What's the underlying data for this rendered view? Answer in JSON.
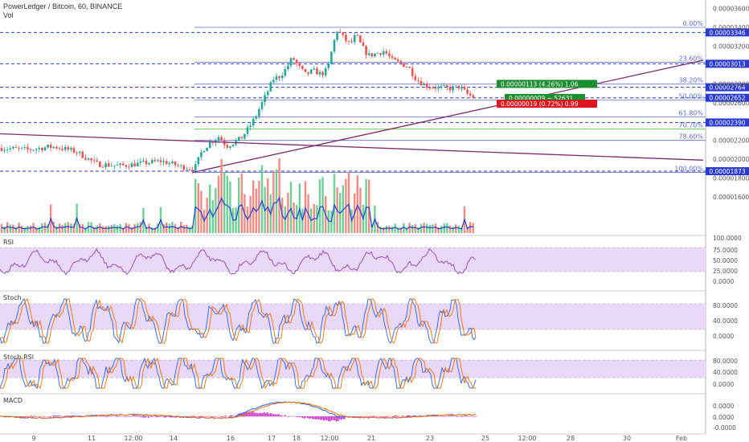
{
  "header": {
    "title": "PowerLedger / Bitcoin, 60, BINANCE",
    "vol": "Vol"
  },
  "colors": {
    "up": "#26a69a",
    "down": "#ef5350",
    "fib": "#5d6bd6",
    "hline": "#2a3ad6",
    "trend": "#7b2b6b",
    "rsi": "#8e44ad",
    "band": "#e9d8f7",
    "stochK": "#2962ff",
    "stochD": "#ff6d00",
    "macdLine": "#2962ff",
    "signal": "#ff6d00",
    "hist": "#cc33cc",
    "green": "#1b8e2f",
    "red": "#e0141e"
  },
  "chart_data": {
    "type": "candlestick",
    "title": "PowerLedger / Bitcoin, 60, BINANCE",
    "ylim": [
      1.66e-05,
      3.69e-05
    ],
    "price_ticks": [
      "0.00003600",
      "0.00003400",
      "0.00003200",
      "0.00002800",
      "0.00002600",
      "0.00002200",
      "0.00002000",
      "0.00001800",
      "0.00001600"
    ],
    "x_ticks": [
      "9",
      "11",
      "12:00",
      "14",
      "16",
      "17",
      "18",
      "12:00",
      "21",
      "23",
      "25",
      "12:00",
      "28",
      "30",
      "Feb"
    ],
    "close_path": [
      [
        0,
        2.12e-05
      ],
      [
        35,
        2.1e-05
      ],
      [
        60,
        2.13e-05
      ],
      [
        70,
        2.13e-05
      ],
      [
        95,
        2.08e-05
      ],
      [
        120,
        1.95e-05
      ],
      [
        150,
        1.93e-05
      ],
      [
        180,
        1.96e-05
      ],
      [
        200,
        1.98e-05
      ],
      [
        210,
        1.96e-05
      ],
      [
        225,
        1.92e-05
      ],
      [
        232,
        1.91e-05
      ],
      [
        242,
        1.9e-05
      ],
      [
        252,
        2.1e-05
      ],
      [
        262,
        2.18e-05
      ],
      [
        272,
        2.24e-05
      ],
      [
        282,
        2.14e-05
      ],
      [
        300,
        2.22e-05
      ],
      [
        310,
        2.34e-05
      ],
      [
        318,
        2.45e-05
      ],
      [
        325,
        2.58e-05
      ],
      [
        332,
        2.7e-05
      ],
      [
        340,
        2.85e-05
      ],
      [
        348,
        2.88e-05
      ],
      [
        356,
        2.96e-05
      ],
      [
        364,
        3.08e-05
      ],
      [
        372,
        2.98e-05
      ],
      [
        380,
        2.9e-05
      ],
      [
        390,
        2.94e-05
      ],
      [
        400,
        2.9e-05
      ],
      [
        408,
        2.96e-05
      ],
      [
        414,
        3.2e-05
      ],
      [
        420,
        3.38e-05
      ],
      [
        428,
        3.28e-05
      ],
      [
        436,
        3.22e-05
      ],
      [
        443,
        3.32e-05
      ],
      [
        450,
        3.2e-05
      ],
      [
        458,
        3.1e-05
      ],
      [
        468,
        3.12e-05
      ],
      [
        478,
        3.15e-05
      ],
      [
        488,
        3.05e-05
      ],
      [
        498,
        3.02e-05
      ],
      [
        508,
        2.98e-05
      ],
      [
        518,
        2.85e-05
      ],
      [
        530,
        2.78e-05
      ],
      [
        545,
        2.76e-05
      ],
      [
        560,
        2.75e-05
      ],
      [
        572,
        2.77e-05
      ],
      [
        580,
        2.7e-05
      ],
      [
        590,
        2.652e-05
      ]
    ],
    "hlines": [
      {
        "value": 3.346e-05,
        "label": "0.00003346"
      },
      {
        "value": 3.013e-05,
        "label": "0.00003013"
      },
      {
        "value": 2.764e-05,
        "label": "0.00002764"
      },
      {
        "value": 2.652e-05,
        "label": "0.00002652"
      },
      {
        "value": 2.39e-05,
        "label": "0.00002390"
      },
      {
        "value": 1.873e-05,
        "label": "0.00001873"
      }
    ],
    "fib_levels": [
      {
        "label": "0.00%",
        "value": 3.4e-05
      },
      {
        "label": "23.60%",
        "value": 3.03e-05
      },
      {
        "label": "38.20%",
        "value": 2.8e-05
      },
      {
        "label": "50.00%",
        "value": 2.63e-05
      },
      {
        "label": "61.80%",
        "value": 2.45e-05
      },
      {
        "label": "70.70%",
        "value": 2.32e-05
      },
      {
        "label": "78.60%",
        "value": 2.2e-05
      },
      {
        "label": "100.00%",
        "value": 1.86e-05
      }
    ],
    "trendlines": [
      {
        "p1": [
          0,
          2.27e-05
        ],
        "p2": [
          875,
          1.99e-05
        ]
      },
      {
        "p1": [
          240,
          1.86e-05
        ],
        "p2": [
          875,
          3.05e-05
        ]
      }
    ],
    "badges": [
      {
        "text": "0.00000113 (4.26%) 1.06",
        "kind": "green",
        "value": 2.8e-05
      },
      {
        "text": "0.00000009 ~ 52631",
        "kind": "green",
        "value": 2.65e-05
      },
      {
        "text": "0.00000019 (0.72%) 0.99",
        "kind": "red",
        "value": 2.59e-05
      }
    ],
    "panes": [
      {
        "name": "RSI",
        "ticks": [
          "100.0000",
          "75.0000",
          "50.0000",
          "25.0000",
          "0.0000"
        ]
      },
      {
        "name": "Stoch",
        "ticks": [
          "80.0000",
          "40.0000",
          "0.0000"
        ]
      },
      {
        "name": "Stoch RSI",
        "ticks": [
          "80.0000",
          "40.0000",
          "0.0000"
        ]
      },
      {
        "name": "MACD",
        "ticks": [
          "0.0000",
          "0.0000",
          "-0.0000"
        ]
      }
    ]
  }
}
